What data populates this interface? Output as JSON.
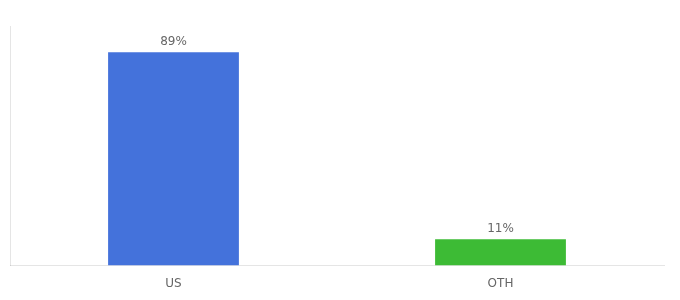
{
  "chart_data": {
    "type": "bar",
    "categories": [
      "US",
      "OTH"
    ],
    "values": [
      89,
      11
    ],
    "colors": [
      "#4472db",
      "#3dbb35"
    ],
    "value_labels": [
      "89%",
      "11%"
    ],
    "data_labels": true,
    "ylim": [
      0,
      100
    ],
    "grid": false,
    "tick_labels": "x"
  }
}
